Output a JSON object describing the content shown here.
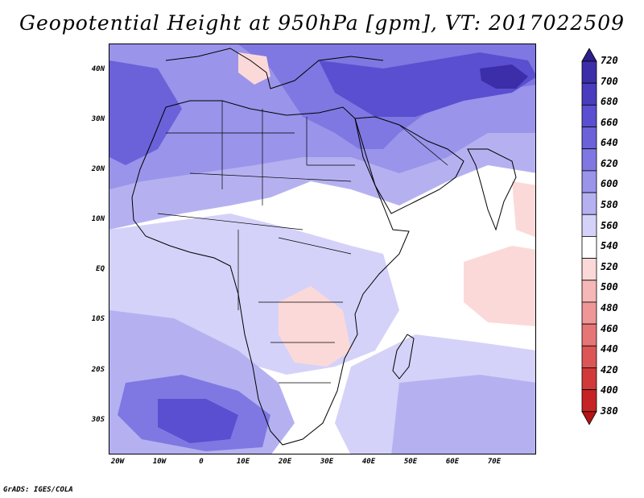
{
  "title": "Geopotential Height at 950hPa [gpm], VT: 2017022509",
  "credit": "GrADS: IGES/COLA",
  "map": {
    "lat_labels": [
      "40N",
      "30N",
      "20N",
      "10N",
      "EQ",
      "10S",
      "20S",
      "30S"
    ],
    "lon_labels": [
      "20W",
      "10W",
      "0",
      "10E",
      "20E",
      "30E",
      "40E",
      "50E",
      "60E",
      "70E"
    ],
    "lat_range": [
      -37,
      45
    ],
    "lon_range": [
      -22,
      80
    ]
  },
  "colorbar": {
    "levels": [
      "720",
      "700",
      "680",
      "660",
      "640",
      "620",
      "600",
      "580",
      "560",
      "540",
      "520",
      "500",
      "480",
      "460",
      "440",
      "420",
      "400",
      "380"
    ],
    "colors": [
      "#2d1e8c",
      "#3c2ea8",
      "#4a3cbe",
      "#5a4fd0",
      "#6b62da",
      "#7f78e2",
      "#9a94ea",
      "#b5b1f1",
      "#d4d2f8",
      "#ffffff",
      "#fcd9d9",
      "#f6b7b7",
      "#ef9696",
      "#e67676",
      "#dc5656",
      "#d23a3a",
      "#c62424",
      "#b51414"
    ]
  }
}
